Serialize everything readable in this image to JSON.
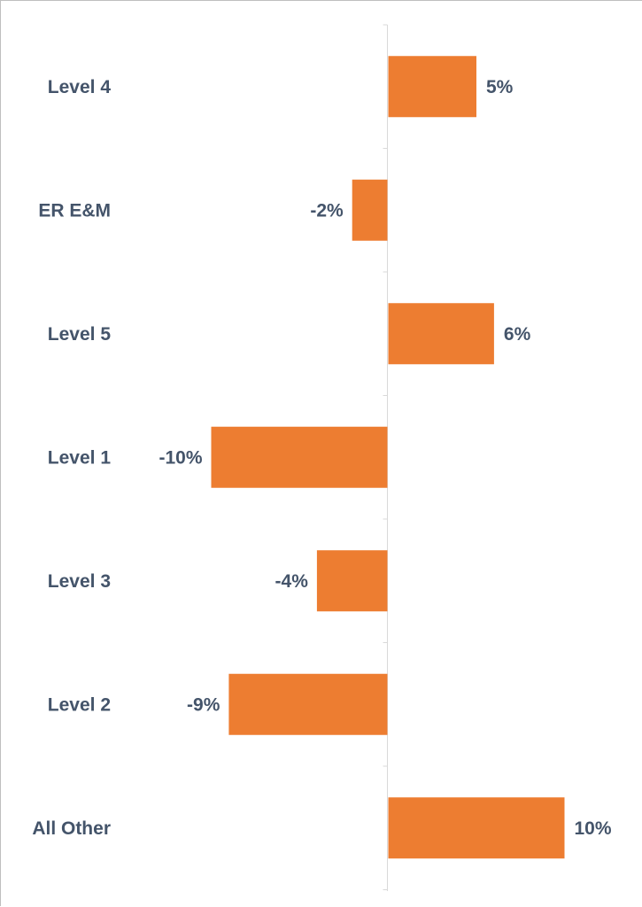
{
  "chart_data": {
    "type": "bar",
    "orientation": "horizontal",
    "categories": [
      "Level 4",
      "ER E&M",
      "Level 5",
      "Level 1",
      "Level 3",
      "Level 2",
      "All Other"
    ],
    "values": [
      5,
      -2,
      6,
      -10,
      -4,
      -9,
      10
    ],
    "data_labels": [
      "5%",
      "-2%",
      "6%",
      "-10%",
      "-4%",
      "-9%",
      "10%"
    ],
    "value_unit": "%",
    "xlim": [
      -10,
      10
    ],
    "title": "",
    "xlabel": "",
    "ylabel": "",
    "grid": false,
    "legend": "none",
    "colors": {
      "bar": "#ed7d31",
      "text": "#44546a",
      "axis": "#d9d9d9",
      "frame": "#bfbfbf"
    }
  }
}
